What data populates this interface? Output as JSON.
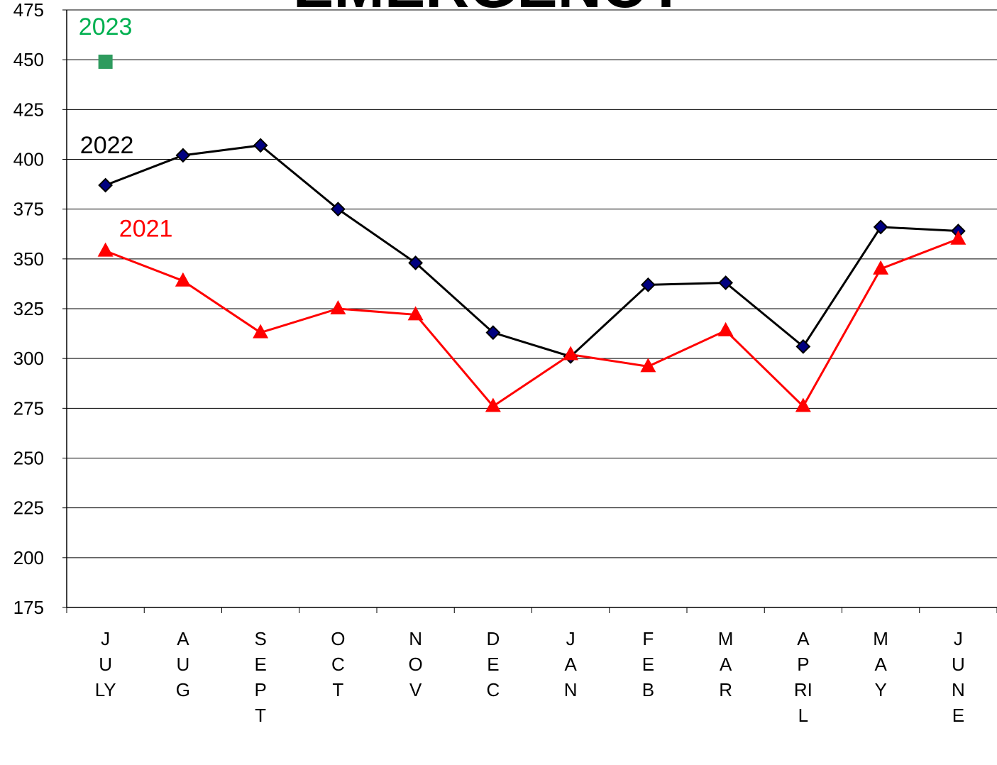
{
  "chart_data": {
    "type": "line",
    "title": "EMERGENCY",
    "categories": [
      "JULY",
      "AUG",
      "SEPT",
      "OCT",
      "NOV",
      "DEC",
      "JAN",
      "FEB",
      "MAR",
      "APRIL",
      "MAY",
      "JUNE"
    ],
    "series": [
      {
        "name": "2023",
        "color": "#2e9b5e",
        "label_color": "#00b050",
        "marker": "square",
        "marker_color": "#2e9b5e",
        "values": [
          449,
          null,
          null,
          null,
          null,
          null,
          null,
          null,
          null,
          null,
          null,
          null
        ]
      },
      {
        "name": "2022",
        "color": "#000000",
        "label_color": "#000000",
        "marker": "diamond",
        "marker_color": "#000080",
        "values": [
          387,
          402,
          407,
          375,
          348,
          313,
          301,
          337,
          338,
          306,
          366,
          364
        ]
      },
      {
        "name": "2021",
        "color": "#ff0000",
        "label_color": "#ff0000",
        "marker": "triangle",
        "marker_color": "#ff0000",
        "values": [
          354,
          339,
          313,
          325,
          322,
          276,
          302,
          296,
          314,
          276,
          345,
          360
        ]
      }
    ],
    "ylim": [
      175,
      475
    ],
    "yticks": [
      175,
      200,
      225,
      250,
      275,
      300,
      325,
      350,
      375,
      400,
      425,
      450,
      475
    ],
    "grid": true
  }
}
